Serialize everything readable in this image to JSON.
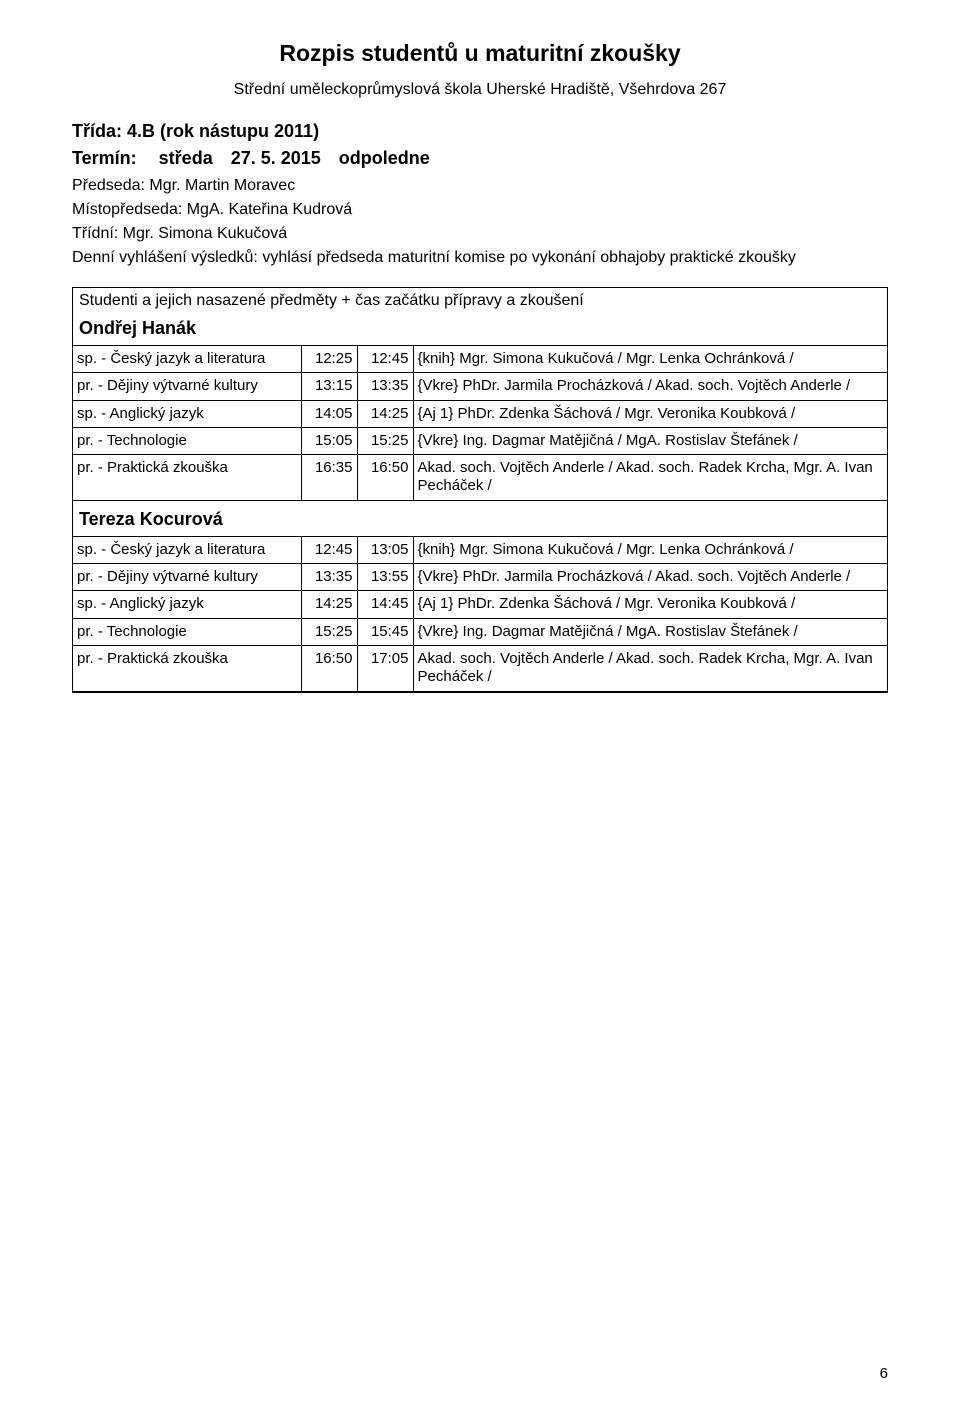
{
  "title": "Rozpis studentů u maturitní zkoušky",
  "subtitle": "Střední uměleckoprůmyslová škola Uherské Hradiště, Všehrdova 267",
  "class_line": "Třída: 4.B   (rok nástupu 2011)",
  "term": {
    "label": "Termín:",
    "day": "středa",
    "date": "27. 5. 2015",
    "part": "odpoledne"
  },
  "chair": "Předseda: Mgr. Martin Moravec",
  "vice": "Místopředseda: MgA. Kateřina Kudrová",
  "classTeacher": "Třídní: Mgr. Simona Kukučová",
  "note": "Denní vyhlášení výsledků: vyhlásí předseda maturitní komise po vykonání obhajoby praktické zkoušky",
  "intro": "Studenti a jejich nasazené předměty + čas začátku přípravy a zkoušení",
  "students": [
    {
      "name": "Ondřej Hanák",
      "rows": [
        {
          "subj": "sp. - Český jazyk a literatura",
          "t1": "12:25",
          "t2": "12:45",
          "det": "{knih}   Mgr. Simona Kukučová / Mgr. Lenka Ochránková /"
        },
        {
          "subj": "pr. - Dějiny výtvarné kultury",
          "t1": "13:15",
          "t2": "13:35",
          "det": "{Vkre}   PhDr. Jarmila Procházková / Akad. soch. Vojtěch Anderle /"
        },
        {
          "subj": "sp. - Anglický jazyk",
          "t1": "14:05",
          "t2": "14:25",
          "det": "{Aj 1}   PhDr. Zdenka Šáchová / Mgr. Veronika Koubková /"
        },
        {
          "subj": "pr. - Technologie",
          "t1": "15:05",
          "t2": "15:25",
          "det": "{Vkre}   Ing. Dagmar Matějičná / MgA. Rostislav Štefánek /"
        },
        {
          "subj": "pr. - Praktická zkouška",
          "t1": "16:35",
          "t2": "16:50",
          "det": "Akad. soch. Vojtěch Anderle / Akad. soch. Radek Krcha, Mgr. A. Ivan Pecháček /"
        }
      ]
    },
    {
      "name": "Tereza Kocurová",
      "rows": [
        {
          "subj": "sp. - Český jazyk a literatura",
          "t1": "12:45",
          "t2": "13:05",
          "det": "{knih}   Mgr. Simona Kukučová / Mgr. Lenka Ochránková /"
        },
        {
          "subj": "pr. - Dějiny výtvarné kultury",
          "t1": "13:35",
          "t2": "13:55",
          "det": "{Vkre}   PhDr. Jarmila Procházková / Akad. soch. Vojtěch Anderle /"
        },
        {
          "subj": "sp. - Anglický jazyk",
          "t1": "14:25",
          "t2": "14:45",
          "det": "{Aj 1}   PhDr. Zdenka Šáchová / Mgr. Veronika Koubková /"
        },
        {
          "subj": "pr. - Technologie",
          "t1": "15:25",
          "t2": "15:45",
          "det": "{Vkre}   Ing. Dagmar Matějičná / MgA. Rostislav Štefánek /"
        },
        {
          "subj": "pr. - Praktická zkouška",
          "t1": "16:50",
          "t2": "17:05",
          "det": "Akad. soch. Vojtěch Anderle / Akad. soch. Radek Krcha, Mgr. A. Ivan Pecháček /"
        }
      ]
    }
  ],
  "pageNumber": "6"
}
